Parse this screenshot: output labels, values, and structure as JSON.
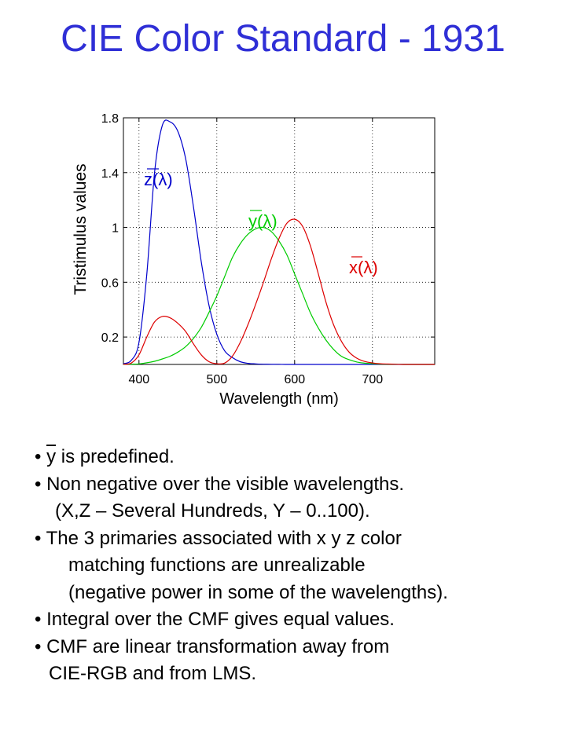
{
  "slide": {
    "title": "CIE Color Standard - 1931"
  },
  "chart_data": {
    "type": "line",
    "xlabel": "Wavelength (nm)",
    "ylabel": "Tristimulus values",
    "xlim": [
      380,
      780
    ],
    "ylim": [
      0,
      1.8
    ],
    "xticks": [
      400,
      500,
      600,
      700
    ],
    "yticks": [
      0.2,
      0.6,
      1,
      1.4,
      1.8
    ],
    "grid": true,
    "x": [
      380,
      390,
      400,
      410,
      420,
      430,
      440,
      450,
      460,
      470,
      480,
      490,
      500,
      510,
      520,
      530,
      540,
      550,
      560,
      570,
      580,
      590,
      600,
      610,
      620,
      630,
      640,
      650,
      660,
      670,
      680,
      690,
      700,
      710,
      720,
      730,
      740,
      750,
      760,
      770,
      780
    ],
    "series": [
      {
        "name": "z(λ)",
        "color": "#0000cc",
        "label_pos": "upper-left",
        "values": [
          0.006,
          0.029,
          0.161,
          0.655,
          1.4,
          1.745,
          1.77,
          1.7,
          1.5,
          1.15,
          0.75,
          0.43,
          0.22,
          0.1,
          0.05,
          0.02,
          0.008,
          0.004,
          0.002,
          0.001,
          0.001,
          0,
          0,
          0,
          0,
          0,
          0,
          0,
          0,
          0,
          0,
          0,
          0,
          0,
          0,
          0,
          0,
          0,
          0,
          0,
          0
        ]
      },
      {
        "name": "y(λ)",
        "color": "#00cc00",
        "label_pos": "upper-center",
        "values": [
          0.001,
          0.002,
          0.004,
          0.012,
          0.023,
          0.04,
          0.06,
          0.09,
          0.13,
          0.19,
          0.27,
          0.38,
          0.5,
          0.64,
          0.78,
          0.88,
          0.95,
          0.99,
          1.0,
          0.97,
          0.9,
          0.8,
          0.66,
          0.52,
          0.38,
          0.27,
          0.18,
          0.11,
          0.06,
          0.035,
          0.018,
          0.009,
          0.005,
          0.002,
          0.001,
          0.001,
          0,
          0,
          0,
          0,
          0
        ]
      },
      {
        "name": "x(λ)",
        "color": "#dd0000",
        "label_pos": "right",
        "values": [
          0.001,
          0.01,
          0.07,
          0.2,
          0.31,
          0.35,
          0.34,
          0.3,
          0.24,
          0.15,
          0.07,
          0.02,
          0.005,
          0.01,
          0.06,
          0.16,
          0.29,
          0.44,
          0.6,
          0.77,
          0.92,
          1.03,
          1.06,
          1.01,
          0.87,
          0.67,
          0.46,
          0.29,
          0.17,
          0.09,
          0.045,
          0.022,
          0.011,
          0.005,
          0.003,
          0.001,
          0,
          0,
          0,
          0,
          0
        ]
      }
    ]
  },
  "bullets": [
    {
      "segments": [
        "• ",
        "y",
        " is predefined."
      ],
      "overline": [
        1
      ]
    },
    {
      "segments": [
        "• Non negative over the visible wavelengths."
      ],
      "overline": []
    },
    {
      "segments": [
        "(X,Z – Several Hundreds, Y – 0..100)."
      ],
      "overline": []
    },
    {
      "segments": [
        "• The 3 primaries associated with x y z color"
      ],
      "overline": []
    },
    {
      "segments": [
        "matching functions are unrealizable"
      ],
      "overline": []
    },
    {
      "segments": [
        "(negative power in some of the wavelengths)."
      ],
      "overline": []
    },
    {
      "segments": [
        "• Integral over the CMF gives equal values."
      ],
      "overline": []
    },
    {
      "segments": [
        "• CMF are linear transformation away from"
      ],
      "overline": []
    },
    {
      "segments": [
        "CIE-RGB and from LMS."
      ],
      "overline": []
    }
  ]
}
